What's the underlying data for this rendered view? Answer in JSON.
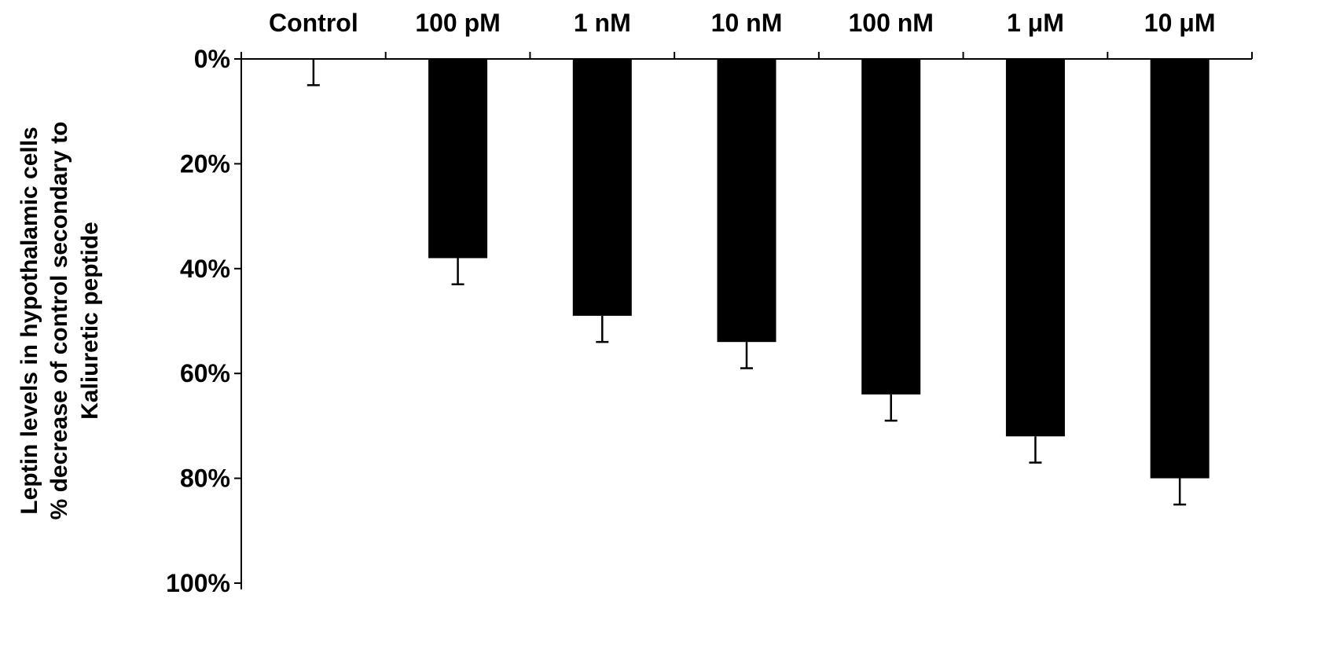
{
  "chart_data": {
    "type": "bar",
    "categories": [
      "Control",
      "100 pM",
      "1 nM",
      "10 nM",
      "100 nM",
      "1 μM",
      "10 μM"
    ],
    "series": [
      {
        "values": [
          0,
          38,
          49,
          54,
          64,
          72,
          80
        ],
        "error": [
          5,
          5,
          5,
          5,
          5,
          5,
          5
        ],
        "color": "#000000"
      }
    ],
    "ylabel_lines": [
      "Leptin levels in  hypothalamic cells",
      "% decrease of control secondary to",
      "Kaliuretic peptide"
    ],
    "ylim": [
      0,
      100
    ],
    "y_ticks": [
      0,
      20,
      40,
      60,
      80,
      100
    ],
    "y_tick_labels": [
      "0%",
      "20%",
      "40%",
      "60%",
      "80%",
      "100%"
    ],
    "y_axis_inverted": true,
    "category_axis_position": "top",
    "grid": false,
    "legend": "none"
  }
}
